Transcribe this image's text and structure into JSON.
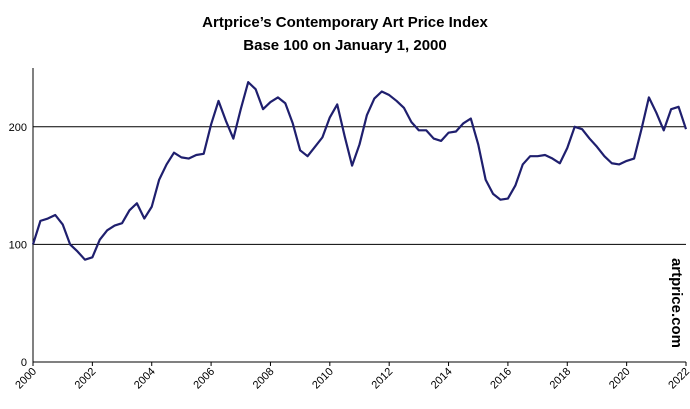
{
  "chart_data": {
    "type": "line",
    "title": "Artprice’s Contemporary Art Price Index",
    "subtitle": "Base 100 on January 1, 2000",
    "annotation": "artprice.com",
    "x": [
      2000,
      2000.25,
      2000.5,
      2000.75,
      2001,
      2001.25,
      2001.5,
      2001.75,
      2002,
      2002.25,
      2002.5,
      2002.75,
      2003,
      2003.25,
      2003.5,
      2003.75,
      2004,
      2004.25,
      2004.5,
      2004.75,
      2005,
      2005.25,
      2005.5,
      2005.75,
      2006,
      2006.25,
      2006.5,
      2006.75,
      2007,
      2007.25,
      2007.5,
      2007.75,
      2008,
      2008.25,
      2008.5,
      2008.75,
      2009,
      2009.25,
      2009.5,
      2009.75,
      2010,
      2010.25,
      2010.5,
      2010.75,
      2011,
      2011.25,
      2011.5,
      2011.75,
      2012,
      2012.25,
      2012.5,
      2012.75,
      2013,
      2013.25,
      2013.5,
      2013.75,
      2014,
      2014.25,
      2014.5,
      2014.75,
      2015,
      2015.25,
      2015.5,
      2015.75,
      2016,
      2016.25,
      2016.5,
      2016.75,
      2017,
      2017.25,
      2017.5,
      2017.75,
      2018,
      2018.25,
      2018.5,
      2018.75,
      2019,
      2019.25,
      2019.5,
      2019.75,
      2020,
      2020.25,
      2020.5,
      2020.75,
      2021,
      2021.25,
      2021.5,
      2021.75,
      2022
    ],
    "series": [
      {
        "name": "Contemporary Art Price Index",
        "color": "#1f1f6e",
        "values": [
          100,
          120,
          122,
          125,
          117,
          100,
          94,
          87,
          89,
          104,
          112,
          116,
          118,
          129,
          135,
          122,
          132,
          155,
          168,
          178,
          174,
          173,
          176,
          177,
          202,
          222,
          205,
          190,
          215,
          238,
          232,
          215,
          221,
          225,
          220,
          203,
          180,
          175,
          183,
          191,
          208,
          219,
          192,
          167,
          185,
          210,
          224,
          230,
          227,
          222,
          216,
          204,
          197,
          197,
          190,
          188,
          195,
          196,
          203,
          207,
          185,
          155,
          143,
          138,
          139,
          150,
          168,
          175,
          175,
          176,
          173,
          169,
          182,
          200,
          198,
          190,
          183,
          175,
          169,
          168,
          171,
          173,
          198,
          225,
          212,
          197,
          215,
          217,
          198
        ]
      }
    ],
    "xlim": [
      2000,
      2022
    ],
    "xticks": [
      2000,
      2002,
      2004,
      2006,
      2008,
      2010,
      2012,
      2014,
      2016,
      2018,
      2020,
      2022
    ],
    "ylim": [
      0,
      250
    ],
    "yticks": [
      0,
      100,
      200
    ],
    "grid": true
  }
}
